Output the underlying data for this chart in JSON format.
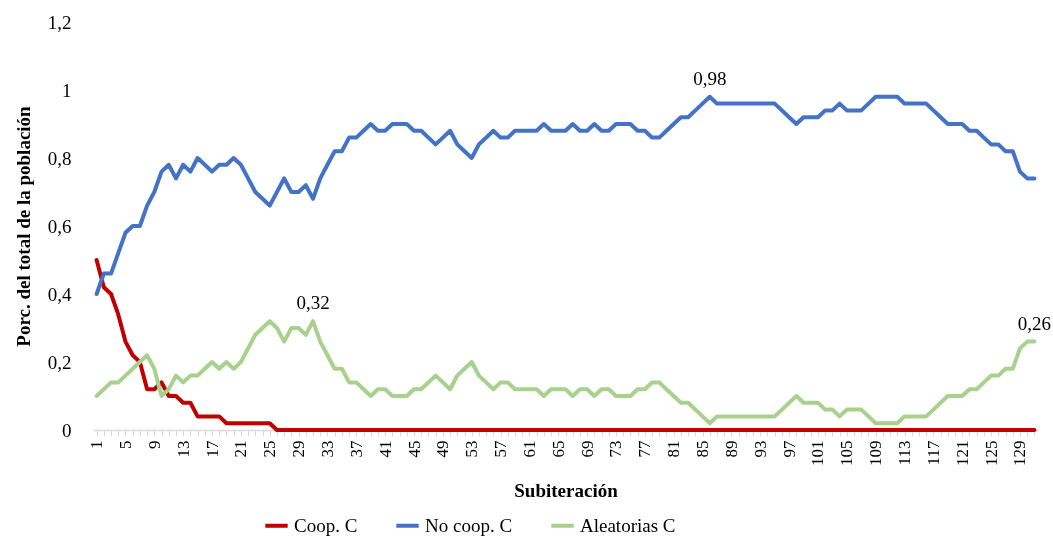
{
  "chart_data": {
    "type": "line",
    "xlabel": "Subiteración",
    "ylabel": "Porc. del total de la población",
    "categories": [
      "1",
      null,
      null,
      null,
      "5",
      null,
      null,
      null,
      "9",
      null,
      null,
      null,
      "13",
      null,
      null,
      null,
      "17",
      null,
      null,
      null,
      "21",
      null,
      null,
      null,
      "25",
      null,
      null,
      null,
      "29",
      null,
      null,
      null,
      "33",
      null,
      null,
      null,
      "37",
      null,
      null,
      null,
      "41",
      null,
      null,
      null,
      "45",
      null,
      null,
      null,
      "49",
      null,
      null,
      null,
      "53",
      null,
      null,
      null,
      "57",
      null,
      null,
      null,
      "61",
      null,
      null,
      null,
      "65",
      null,
      null,
      null,
      "69",
      null,
      null,
      null,
      "73",
      null,
      null,
      null,
      "77",
      null,
      null,
      null,
      "81",
      null,
      null,
      null,
      "85",
      null,
      null,
      null,
      "89",
      null,
      null,
      null,
      "93",
      null,
      null,
      null,
      "97",
      null,
      null,
      null,
      "101",
      null,
      null,
      null,
      "105",
      null,
      null,
      null,
      "109",
      null,
      null,
      null,
      "113",
      null,
      null,
      null,
      "117",
      null,
      null,
      null,
      "121",
      null,
      null,
      null,
      "125",
      null,
      null,
      null,
      "129",
      null,
      null
    ],
    "series": [
      {
        "name": "Coop. C",
        "color": "#c00000",
        "values": [
          0.5,
          0.42,
          0.4,
          0.34,
          0.26,
          0.22,
          0.2,
          0.12,
          0.12,
          0.14,
          0.1,
          0.1,
          0.08,
          0.08,
          0.04,
          0.04,
          0.04,
          0.04,
          0.02,
          0.02,
          0.02,
          0.02,
          0.02,
          0.02,
          0.02,
          0,
          0,
          0,
          0,
          0,
          0,
          0,
          0,
          0,
          0,
          0,
          0,
          0,
          0,
          0,
          0,
          0,
          0,
          0,
          0,
          0,
          0,
          0,
          0,
          0,
          0,
          0,
          0,
          0,
          0,
          0,
          0,
          0,
          0,
          0,
          0,
          0,
          0,
          0,
          0,
          0,
          0,
          0,
          0,
          0,
          0,
          0,
          0,
          0,
          0,
          0,
          0,
          0,
          0,
          0,
          0,
          0,
          0,
          0,
          0,
          0,
          0,
          0,
          0,
          0,
          0,
          0,
          0,
          0,
          0,
          0,
          0,
          0,
          0,
          0,
          0,
          0,
          0,
          0,
          0,
          0,
          0,
          0,
          0,
          0,
          0,
          0,
          0,
          0,
          0,
          0,
          0,
          0,
          0,
          0,
          0,
          0,
          0,
          0,
          0,
          0,
          0,
          0,
          0,
          0,
          0
        ]
      },
      {
        "name": "No coop. C",
        "color": "#4472c4",
        "values": [
          0.4,
          0.46,
          0.46,
          0.52,
          0.58,
          0.6,
          0.6,
          0.66,
          0.7,
          0.76,
          0.78,
          0.74,
          0.78,
          0.76,
          0.8,
          0.78,
          0.76,
          0.78,
          0.78,
          0.8,
          0.78,
          0.74,
          0.7,
          0.68,
          0.66,
          0.7,
          0.74,
          0.7,
          0.7,
          0.72,
          0.68,
          0.74,
          0.78,
          0.82,
          0.82,
          0.86,
          0.86,
          0.88,
          0.9,
          0.88,
          0.88,
          0.9,
          0.9,
          0.9,
          0.88,
          0.88,
          0.86,
          0.84,
          0.86,
          0.88,
          0.84,
          0.82,
          0.8,
          0.84,
          0.86,
          0.88,
          0.86,
          0.86,
          0.88,
          0.88,
          0.88,
          0.88,
          0.9,
          0.88,
          0.88,
          0.88,
          0.9,
          0.88,
          0.88,
          0.9,
          0.88,
          0.88,
          0.9,
          0.9,
          0.9,
          0.88,
          0.88,
          0.86,
          0.86,
          0.88,
          0.9,
          0.92,
          0.92,
          0.94,
          0.96,
          0.98,
          0.96,
          0.96,
          0.96,
          0.96,
          0.96,
          0.96,
          0.96,
          0.96,
          0.96,
          0.94,
          0.92,
          0.9,
          0.92,
          0.92,
          0.92,
          0.94,
          0.94,
          0.96,
          0.94,
          0.94,
          0.94,
          0.96,
          0.98,
          0.98,
          0.98,
          0.98,
          0.96,
          0.96,
          0.96,
          0.96,
          0.94,
          0.92,
          0.9,
          0.9,
          0.9,
          0.88,
          0.88,
          0.86,
          0.84,
          0.84,
          0.82,
          0.82,
          0.76,
          0.74,
          0.74
        ],
        "value_labels": [
          null,
          null,
          null,
          null,
          null,
          null,
          null,
          null,
          null,
          null,
          null,
          null,
          null,
          null,
          null,
          null,
          null,
          null,
          null,
          null,
          null,
          null,
          null,
          null,
          null,
          null,
          null,
          null,
          null,
          null,
          null,
          null,
          null,
          null,
          null,
          null,
          null,
          null,
          null,
          null,
          null,
          null,
          null,
          null,
          null,
          null,
          null,
          null,
          null,
          null,
          null,
          null,
          null,
          null,
          null,
          null,
          null,
          null,
          null,
          null,
          null,
          null,
          null,
          null,
          null,
          null,
          null,
          null,
          null,
          null,
          null,
          null,
          null,
          null,
          null,
          null,
          null,
          null,
          null,
          null,
          null,
          null,
          null,
          null,
          null,
          "0,98",
          null,
          null,
          null,
          null,
          null,
          null,
          null,
          null,
          null,
          null,
          null,
          null,
          null,
          null,
          null,
          null,
          null,
          null,
          null,
          null,
          null,
          null,
          null,
          null,
          null,
          null,
          null,
          null,
          null,
          null,
          null,
          null,
          null,
          null,
          null,
          null,
          null,
          null,
          null,
          null,
          null,
          null,
          null,
          null,
          null
        ]
      },
      {
        "name": "Aleatorias C",
        "color": "#a9d18e",
        "values": [
          0.1,
          0.12,
          0.14,
          0.14,
          0.16,
          0.18,
          0.2,
          0.22,
          0.18,
          0.1,
          0.12,
          0.16,
          0.14,
          0.16,
          0.16,
          0.18,
          0.2,
          0.18,
          0.2,
          0.18,
          0.2,
          0.24,
          0.28,
          0.3,
          0.32,
          0.3,
          0.26,
          0.3,
          0.3,
          0.28,
          0.32,
          0.26,
          0.22,
          0.18,
          0.18,
          0.14,
          0.14,
          0.12,
          0.1,
          0.12,
          0.12,
          0.1,
          0.1,
          0.1,
          0.12,
          0.12,
          0.14,
          0.16,
          0.14,
          0.12,
          0.16,
          0.18,
          0.2,
          0.16,
          0.14,
          0.12,
          0.14,
          0.14,
          0.12,
          0.12,
          0.12,
          0.12,
          0.1,
          0.12,
          0.12,
          0.12,
          0.1,
          0.12,
          0.12,
          0.1,
          0.12,
          0.12,
          0.1,
          0.1,
          0.1,
          0.12,
          0.12,
          0.14,
          0.14,
          0.12,
          0.1,
          0.08,
          0.08,
          0.06,
          0.04,
          0.02,
          0.04,
          0.04,
          0.04,
          0.04,
          0.04,
          0.04,
          0.04,
          0.04,
          0.04,
          0.06,
          0.08,
          0.1,
          0.08,
          0.08,
          0.08,
          0.06,
          0.06,
          0.04,
          0.06,
          0.06,
          0.06,
          0.04,
          0.02,
          0.02,
          0.02,
          0.02,
          0.04,
          0.04,
          0.04,
          0.04,
          0.06,
          0.08,
          0.1,
          0.1,
          0.1,
          0.12,
          0.12,
          0.14,
          0.16,
          0.16,
          0.18,
          0.18,
          0.24,
          0.26,
          0.26
        ],
        "value_labels": [
          null,
          null,
          null,
          null,
          null,
          null,
          null,
          null,
          null,
          null,
          null,
          null,
          null,
          null,
          null,
          null,
          null,
          null,
          null,
          null,
          null,
          null,
          null,
          null,
          null,
          null,
          null,
          null,
          null,
          null,
          "0,32",
          null,
          null,
          null,
          null,
          null,
          null,
          null,
          null,
          null,
          null,
          null,
          null,
          null,
          null,
          null,
          null,
          null,
          null,
          null,
          null,
          null,
          null,
          null,
          null,
          null,
          null,
          null,
          null,
          null,
          null,
          null,
          null,
          null,
          null,
          null,
          null,
          null,
          null,
          null,
          null,
          null,
          null,
          null,
          null,
          null,
          null,
          null,
          null,
          null,
          null,
          null,
          null,
          null,
          null,
          null,
          null,
          null,
          null,
          null,
          null,
          null,
          null,
          null,
          null,
          null,
          null,
          null,
          null,
          null,
          null,
          null,
          null,
          null,
          null,
          null,
          null,
          null,
          null,
          null,
          null,
          null,
          null,
          null,
          null,
          null,
          null,
          null,
          null,
          null,
          null,
          null,
          null,
          null,
          null,
          null,
          null,
          null,
          null,
          null,
          "0,26"
        ]
      }
    ],
    "ylim": [
      0,
      1.2
    ],
    "yticks": [
      0,
      {
        "value": 0.2,
        "label": "0,2"
      },
      {
        "value": 0.4,
        "label": "0,4"
      },
      {
        "value": 0.6,
        "label": "0,6"
      },
      {
        "value": 0.8,
        "label": "0,8"
      },
      1,
      {
        "value": 1.2,
        "label": "1,2"
      }
    ],
    "grid": false,
    "legend": "bottom",
    "marker": "none",
    "line_style": "solid"
  }
}
